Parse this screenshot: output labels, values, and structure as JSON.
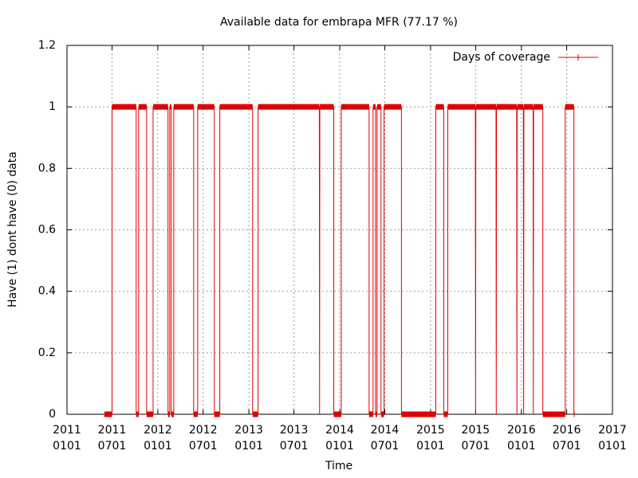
{
  "chart_data": {
    "type": "step",
    "title": "Available data for embrapa MFR (77.17 %)",
    "x_label": "Time",
    "y_label": "Have (1) dont have (0) data",
    "xlim": [
      "2011-01-01",
      "2017-01-01"
    ],
    "xticks": [
      {
        "value": "2011-01-01",
        "label": "2011\n0101"
      },
      {
        "value": "2011-07-01",
        "label": "2011\n0701"
      },
      {
        "value": "2012-01-01",
        "label": "2012\n0101"
      },
      {
        "value": "2012-07-01",
        "label": "2012\n0701"
      },
      {
        "value": "2013-01-01",
        "label": "2013\n0101"
      },
      {
        "value": "2013-07-01",
        "label": "2013\n0701"
      },
      {
        "value": "2014-01-01",
        "label": "2014\n0101"
      },
      {
        "value": "2014-07-01",
        "label": "2014\n0701"
      },
      {
        "value": "2015-01-01",
        "label": "2015\n0101"
      },
      {
        "value": "2015-07-01",
        "label": "2015\n0701"
      },
      {
        "value": "2016-01-01",
        "label": "2016\n0101"
      },
      {
        "value": "2016-07-01",
        "label": "2016\n0701"
      },
      {
        "value": "2017-01-01",
        "label": "2017\n0101"
      }
    ],
    "ylim": [
      0,
      1.2
    ],
    "yticks": [
      0,
      0.2,
      0.4,
      0.6,
      0.8,
      1,
      1.2
    ],
    "grid": true,
    "legend": "top-right",
    "series": [
      {
        "name": "Days of coverage",
        "color": "#e00000",
        "x": [
          "2011-05-31",
          "2011-07-01",
          "2011-07-01",
          "2011-10-06",
          "2011-10-06",
          "2011-10-16",
          "2011-10-16",
          "2011-11-17",
          "2011-11-17",
          "2011-12-13",
          "2011-12-13",
          "2012-02-11",
          "2012-02-11",
          "2012-02-18",
          "2012-02-18",
          "2012-02-24",
          "2012-02-24",
          "2012-03-05",
          "2012-03-05",
          "2012-05-24",
          "2012-05-24",
          "2012-06-09",
          "2012-06-09",
          "2012-08-15",
          "2012-08-15",
          "2012-09-06",
          "2012-09-06",
          "2013-01-16",
          "2013-01-16",
          "2013-02-07",
          "2013-02-07",
          "2013-10-11",
          "2013-10-12",
          "2013-10-13",
          "2013-12-08",
          "2013-12-08",
          "2014-01-07",
          "2014-01-07",
          "2014-04-29",
          "2014-04-29",
          "2014-05-15",
          "2014-05-15",
          "2014-05-25",
          "2014-05-25",
          "2014-05-31",
          "2014-05-31",
          "2014-06-16",
          "2014-06-16",
          "2014-06-28",
          "2014-06-28",
          "2014-09-06",
          "2014-09-06",
          "2015-01-22",
          "2015-01-22",
          "2015-02-23",
          "2015-02-23",
          "2015-03-11",
          "2015-03-11",
          "2015-06-30",
          "2015-07-01",
          "2015-07-02",
          "2015-09-21",
          "2015-09-22",
          "2015-09-23",
          "2015-12-13",
          "2015-12-14",
          "2015-12-15",
          "2016-01-09",
          "2016-01-10",
          "2016-01-11",
          "2016-02-17",
          "2016-02-18",
          "2016-02-19",
          "2016-03-27",
          "2016-03-27",
          "2016-06-25",
          "2016-06-25",
          "2016-07-30",
          "2016-07-30",
          "2016-08-02"
        ],
        "values": [
          0,
          0,
          1,
          1,
          0,
          0,
          1,
          1,
          0,
          0,
          1,
          1,
          0,
          0,
          1,
          1,
          0,
          0,
          1,
          1,
          0,
          0,
          1,
          1,
          0,
          0,
          1,
          1,
          0,
          0,
          1,
          1,
          0,
          1,
          1,
          0,
          0,
          1,
          1,
          0,
          0,
          1,
          1,
          0,
          0,
          1,
          1,
          0,
          0,
          1,
          1,
          0,
          0,
          1,
          1,
          0,
          0,
          1,
          1,
          0,
          1,
          1,
          0,
          1,
          1,
          0,
          1,
          1,
          0,
          1,
          1,
          0,
          1,
          1,
          0,
          0,
          1,
          1,
          0,
          0
        ]
      }
    ]
  }
}
